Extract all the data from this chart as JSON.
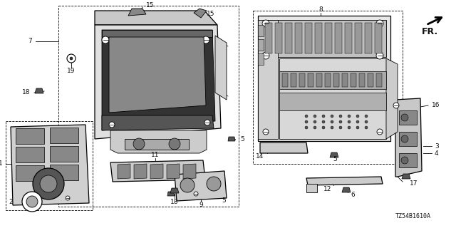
{
  "background_color": "#ffffff",
  "part_number": "TZ54B1610A",
  "fr_label": "FR.",
  "text_color": "#111111",
  "line_color": "#111111",
  "label_fontsize": 6.5,
  "part_num_fontsize": 6,
  "fr_fontsize": 9,
  "gray_fill": "#d8d8d8",
  "dark_fill": "#606060",
  "mid_fill": "#b0b0b0"
}
